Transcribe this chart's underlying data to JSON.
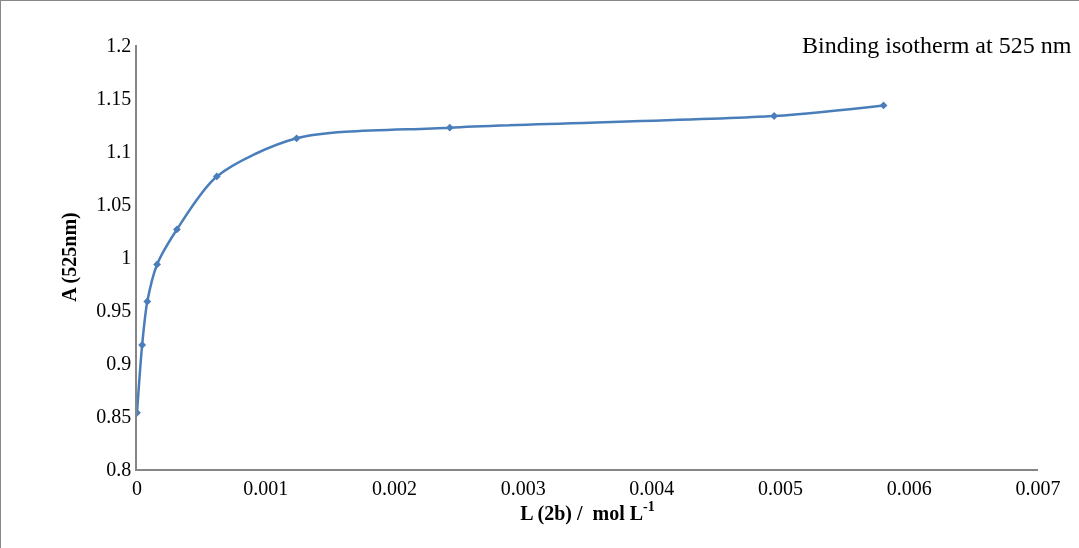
{
  "chart_data": {
    "type": "line",
    "title": "Binding isotherm at 525 nm",
    "xlabel": "L (2b) /  mol L$^{-1}$",
    "ylabel": "A (525nm)",
    "x": [
      0,
      4e-05,
      8e-05,
      0.000156,
      0.00031,
      0.00062,
      0.00124,
      0.00243,
      0.00495,
      0.0058
    ],
    "series": [
      {
        "color": "#4a7ebb",
        "values": [
          0.853,
          0.917,
          0.958,
          0.993,
          1.026,
          1.076,
          1.112,
          1.122,
          1.133,
          1.143
        ]
      }
    ],
    "xlim": [
      0,
      0.007
    ],
    "xticks": [
      0,
      0.001,
      0.002,
      0.003,
      0.004,
      0.005,
      0.006,
      0.007
    ],
    "ylim": [
      0.8,
      1.2
    ],
    "yticks": [
      0.8,
      0.85,
      0.9,
      0.95,
      1,
      1.05,
      1.1,
      1.15,
      1.2
    ],
    "grid": false,
    "marker": "diamond",
    "line_style": "solid"
  }
}
